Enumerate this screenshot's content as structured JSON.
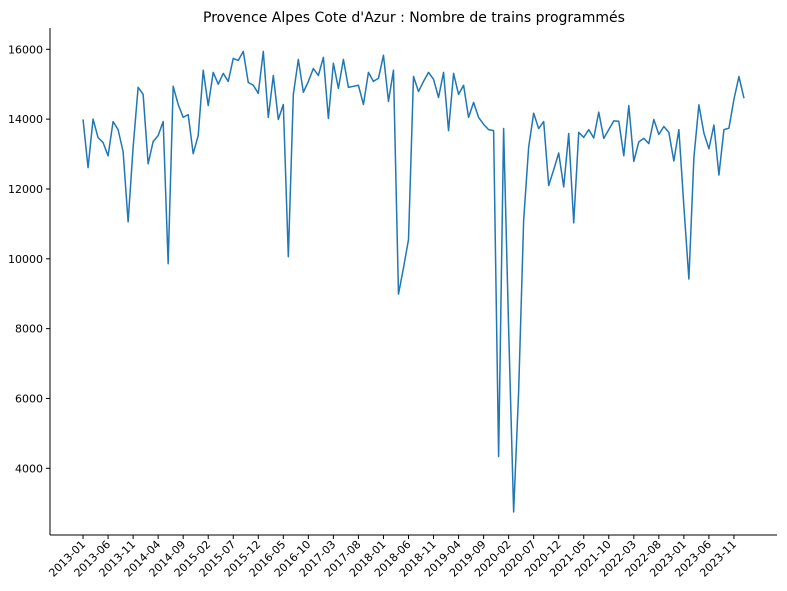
{
  "chart_data": {
    "type": "line",
    "title": "Provence Alpes Cote d'Azur : Nombre de trains programmés",
    "categories": [
      "2013-01",
      null,
      null,
      null,
      null,
      "2013-06",
      null,
      null,
      null,
      null,
      "2013-11",
      null,
      null,
      null,
      null,
      "2014-04",
      null,
      null,
      null,
      null,
      "2014-09",
      null,
      null,
      null,
      null,
      "2015-02",
      null,
      null,
      null,
      null,
      "2015-07",
      null,
      null,
      null,
      null,
      "2015-12",
      null,
      null,
      null,
      null,
      "2016-05",
      null,
      null,
      null,
      null,
      "2016-10",
      null,
      null,
      null,
      null,
      "2017-03",
      null,
      null,
      null,
      null,
      "2017-08",
      null,
      null,
      null,
      null,
      "2018-01",
      null,
      null,
      null,
      null,
      "2018-06",
      null,
      null,
      null,
      null,
      "2018-11",
      null,
      null,
      null,
      null,
      "2019-04",
      null,
      null,
      null,
      null,
      "2019-09",
      null,
      null,
      null,
      null,
      "2020-02",
      null,
      null,
      null,
      null,
      "2020-07",
      null,
      null,
      null,
      null,
      "2020-12",
      null,
      null,
      null,
      null,
      "2021-05",
      null,
      null,
      null,
      null,
      "2021-10",
      null,
      null,
      null,
      null,
      "2022-03",
      null,
      null,
      null,
      null,
      "2022-08",
      null,
      null,
      null,
      null,
      "2023-01",
      null,
      null,
      null,
      null,
      "2023-06",
      null,
      null,
      null,
      null,
      "2023-11",
      null,
      null
    ],
    "values": [
      13990,
      12610,
      14000,
      13470,
      13330,
      12950,
      13930,
      13700,
      13070,
      11060,
      13190,
      14910,
      14710,
      12720,
      13360,
      13530,
      13930,
      9860,
      14940,
      14420,
      14050,
      14130,
      13010,
      13530,
      15400,
      14390,
      15340,
      15000,
      15310,
      15080,
      15740,
      15680,
      15940,
      15050,
      14970,
      14740,
      15940,
      14050,
      15250,
      13990,
      14420,
      10060,
      14710,
      15710,
      14770,
      15080,
      15450,
      15250,
      15770,
      14020,
      15600,
      14880,
      15710,
      14910,
      14940,
      14970,
      14420,
      15340,
      15080,
      15170,
      15830,
      14510,
      15400,
      8990,
      9740,
      10550,
      15220,
      14790,
      15080,
      15340,
      15140,
      14620,
      15340,
      13670,
      15310,
      14710,
      14970,
      14050,
      14480,
      14050,
      13850,
      13700,
      13670,
      4340,
      13730,
      8000,
      2750,
      6200,
      11100,
      13200,
      14170,
      13730,
      13930,
      12100,
      12550,
      13030,
      12060,
      13590,
      11030,
      13620,
      13480,
      13700,
      13460,
      14200,
      13450,
      13700,
      13950,
      13940,
      12950,
      14390,
      12790,
      13350,
      13450,
      13300,
      13990,
      13560,
      13790,
      13620,
      12800,
      13700,
      11500,
      9420,
      12900,
      14410,
      13600,
      13150,
      13830,
      12400,
      13700,
      13740,
      14570,
      15220,
      14600
    ],
    "color": "#1f77b4",
    "ylim": [
      2090,
      16610
    ],
    "yticks": [
      4000,
      6000,
      8000,
      10000,
      12000,
      14000,
      16000
    ]
  }
}
